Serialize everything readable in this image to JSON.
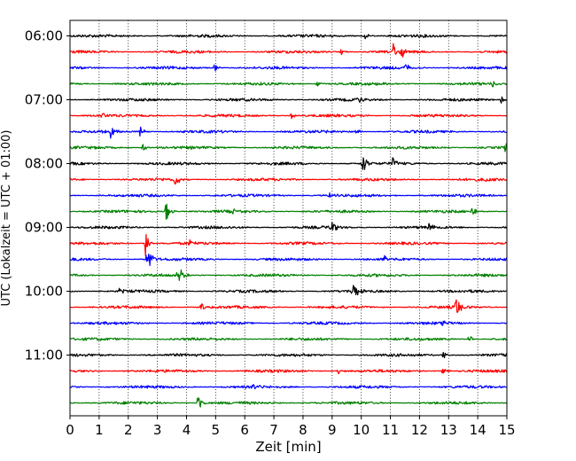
{
  "chart_data": {
    "type": "line",
    "title": "",
    "xlabel": "Zeit  [min]",
    "ylabel": "UTC (Lokalzeit = UTC + 01:00)",
    "xlim": [
      0,
      15
    ],
    "x_ticks": [
      "0",
      "1",
      "2",
      "3",
      "4",
      "5",
      "6",
      "7",
      "8",
      "9",
      "10",
      "11",
      "12",
      "13",
      "14",
      "15"
    ],
    "y_tick_labels": [
      "06:00",
      "07:00",
      "08:00",
      "09:00",
      "10:00",
      "11:00"
    ],
    "grid": "vertical dotted",
    "trace_interval_minutes": 15,
    "color_cycle": [
      "#000000",
      "#ff0000",
      "#0000ff",
      "#008000"
    ],
    "traces": [
      {
        "start": "06:00",
        "color": "#000000",
        "events": [
          {
            "t": 10.1,
            "amp": 0.3
          }
        ]
      },
      {
        "start": "06:15",
        "color": "#ff0000",
        "events": [
          {
            "t": 11.1,
            "amp": 0.7
          },
          {
            "t": 11.4,
            "amp": 0.45
          },
          {
            "t": 9.3,
            "amp": 0.25
          }
        ]
      },
      {
        "start": "06:30",
        "color": "#0000ff",
        "events": [
          {
            "t": 4.95,
            "amp": 0.35
          },
          {
            "t": 11.5,
            "amp": 0.35
          }
        ]
      },
      {
        "start": "06:45",
        "color": "#008000",
        "events": [
          {
            "t": 8.5,
            "amp": 0.3
          },
          {
            "t": 14.5,
            "amp": 0.25
          }
        ]
      },
      {
        "start": "07:00",
        "color": "#000000",
        "events": [
          {
            "t": 9.8,
            "amp": 0.35
          },
          {
            "t": 14.8,
            "amp": 0.25
          }
        ]
      },
      {
        "start": "07:15",
        "color": "#ff0000",
        "events": [
          {
            "t": 1.1,
            "amp": 0.25
          },
          {
            "t": 7.6,
            "amp": 0.25
          }
        ]
      },
      {
        "start": "07:30",
        "color": "#0000ff",
        "events": [
          {
            "t": 1.4,
            "amp": 0.45
          },
          {
            "t": 2.4,
            "amp": 0.35
          },
          {
            "t": 9.8,
            "amp": 0.25
          }
        ]
      },
      {
        "start": "07:45",
        "color": "#008000",
        "events": [
          {
            "t": 2.5,
            "amp": 0.25
          },
          {
            "t": 14.95,
            "amp": 0.35
          }
        ]
      },
      {
        "start": "08:00",
        "color": "#000000",
        "events": [
          {
            "t": 10.05,
            "amp": 0.75
          },
          {
            "t": 11.05,
            "amp": 0.45
          }
        ]
      },
      {
        "start": "08:15",
        "color": "#ff0000",
        "events": [
          {
            "t": 3.6,
            "amp": 0.5
          },
          {
            "t": 14.2,
            "amp": 0.25
          }
        ]
      },
      {
        "start": "08:30",
        "color": "#0000ff",
        "events": [
          {
            "t": 8.9,
            "amp": 0.3
          }
        ]
      },
      {
        "start": "08:45",
        "color": "#008000",
        "events": [
          {
            "t": 3.3,
            "amp": 0.75
          },
          {
            "t": 13.8,
            "amp": 0.55
          },
          {
            "t": 5.6,
            "amp": 0.25
          }
        ]
      },
      {
        "start": "09:00",
        "color": "#000000",
        "events": [
          {
            "t": 8.95,
            "amp": 0.6
          },
          {
            "t": 12.3,
            "amp": 0.35
          }
        ]
      },
      {
        "start": "09:15",
        "color": "#ff0000",
        "events": [
          {
            "t": 2.6,
            "amp": 1.0
          },
          {
            "t": 4.1,
            "amp": 0.3
          }
        ]
      },
      {
        "start": "09:30",
        "color": "#0000ff",
        "events": [
          {
            "t": 2.65,
            "amp": 1.4
          },
          {
            "t": 10.8,
            "amp": 0.3
          }
        ]
      },
      {
        "start": "09:45",
        "color": "#008000",
        "events": [
          {
            "t": 3.7,
            "amp": 0.9
          }
        ]
      },
      {
        "start": "10:00",
        "color": "#000000",
        "events": [
          {
            "t": 9.7,
            "amp": 0.9
          },
          {
            "t": 1.7,
            "amp": 0.25
          }
        ]
      },
      {
        "start": "10:15",
        "color": "#ff0000",
        "events": [
          {
            "t": 13.25,
            "amp": 0.85
          },
          {
            "t": 4.5,
            "amp": 0.25
          }
        ]
      },
      {
        "start": "10:30",
        "color": "#0000ff",
        "events": [
          {
            "t": 12.8,
            "amp": 0.3
          }
        ]
      },
      {
        "start": "10:45",
        "color": "#008000",
        "events": [
          {
            "t": 13.7,
            "amp": 0.35
          }
        ]
      },
      {
        "start": "11:00",
        "color": "#000000",
        "events": [
          {
            "t": 12.8,
            "amp": 0.3
          }
        ]
      },
      {
        "start": "11:15",
        "color": "#ff0000",
        "events": [
          {
            "t": 12.8,
            "amp": 0.3
          },
          {
            "t": 9.2,
            "amp": 0.25
          }
        ]
      },
      {
        "start": "11:30",
        "color": "#0000ff",
        "events": [
          {
            "t": 6.3,
            "amp": 0.3
          }
        ]
      },
      {
        "start": "11:45",
        "color": "#008000",
        "events": [
          {
            "t": 4.4,
            "amp": 0.7
          }
        ]
      }
    ]
  }
}
